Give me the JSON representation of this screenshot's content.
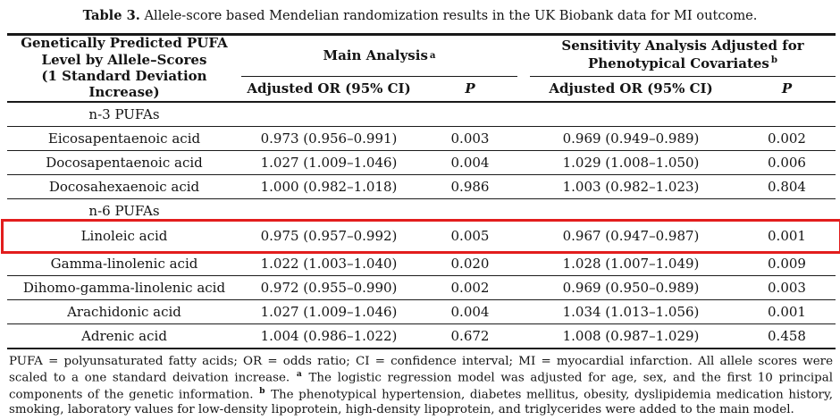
{
  "title": {
    "label": "Table 3.",
    "text": " Allele-score based Mendelian randomization results in the UK Biobank data for MI outcome."
  },
  "colors": {
    "highlight_box": "#e21d1d",
    "rule": "#191919",
    "text": "#141414"
  },
  "table": {
    "header": {
      "col1_lines": [
        "Genetically Predicted PUFA",
        "Level by Allele–Scores",
        "(1 Standard Deviation Increase)"
      ],
      "main": {
        "label": "Main Analysis",
        "sup": "a"
      },
      "sensitivity": {
        "line1": "Sensitivity Analysis Adjusted for",
        "line2": "Phenotypical Covariates",
        "sup": "b"
      },
      "sub": {
        "or": "Adjusted OR (95% CI)",
        "p": "P"
      }
    },
    "rows": [
      {
        "type": "section",
        "name": "n-3 PUFAs"
      },
      {
        "type": "data",
        "name": "Eicosapentaenoic acid",
        "main_or": "0.973 (0.956–0.991)",
        "main_p": "0.003",
        "sens_or": "0.969 (0.949–0.989)",
        "sens_p": "0.002"
      },
      {
        "type": "data",
        "name": "Docosapentaenoic acid",
        "main_or": "1.027 (1.009–1.046)",
        "main_p": "0.004",
        "sens_or": "1.029 (1.008–1.050)",
        "sens_p": "0.006"
      },
      {
        "type": "data",
        "name": "Docosahexaenoic acid",
        "main_or": "1.000 (0.982–1.018)",
        "main_p": "0.986",
        "sens_or": "1.003 (0.982–1.023)",
        "sens_p": "0.804"
      },
      {
        "type": "section",
        "name": "n-6 PUFAs"
      },
      {
        "type": "data",
        "name": "Linoleic acid",
        "highlight": true,
        "main_or": "0.975 (0.957–0.992)",
        "main_p": "0.005",
        "sens_or": "0.967 (0.947–0.987)",
        "sens_p": "0.001"
      },
      {
        "type": "data",
        "name": "Gamma-linolenic acid",
        "main_or": "1.022 (1.003–1.040)",
        "main_p": "0.020",
        "sens_or": "1.028 (1.007–1.049)",
        "sens_p": "0.009"
      },
      {
        "type": "data",
        "name": "Dihomo-gamma-linolenic acid",
        "main_or": "0.972 (0.955–0.990)",
        "main_p": "0.002",
        "sens_or": "0.969 (0.950–0.989)",
        "sens_p": "0.003"
      },
      {
        "type": "data",
        "name": "Arachidonic acid",
        "main_or": "1.027 (1.009–1.046)",
        "main_p": "0.004",
        "sens_or": "1.034 (1.013–1.056)",
        "sens_p": "0.001"
      },
      {
        "type": "data",
        "name": "Adrenic acid",
        "main_or": "1.004 (0.986–1.022)",
        "main_p": "0.672",
        "sens_or": "1.008 (0.987–1.029)",
        "sens_p": "0.458"
      }
    ]
  },
  "footnote": {
    "segments": [
      {
        "text": "PUFA = polyunsaturated fatty acids; OR = odds ratio; CI = confidence interval; MI = myocardial infarction.  All allele scores were scaled to a one standard deivation increase. "
      },
      {
        "sup": "a"
      },
      {
        "text": " The logistic regression model was adjusted for age, sex, and the first 10 principal components of the genetic information. "
      },
      {
        "sup": "b"
      },
      {
        "text": " The phenotypical hypertension, diabetes mellitus, obesity, dyslipidemia medication history, smoking, laboratory values for low-density lipoprotein, high-density lipoprotein, and triglycerides were added to the main model."
      }
    ]
  }
}
